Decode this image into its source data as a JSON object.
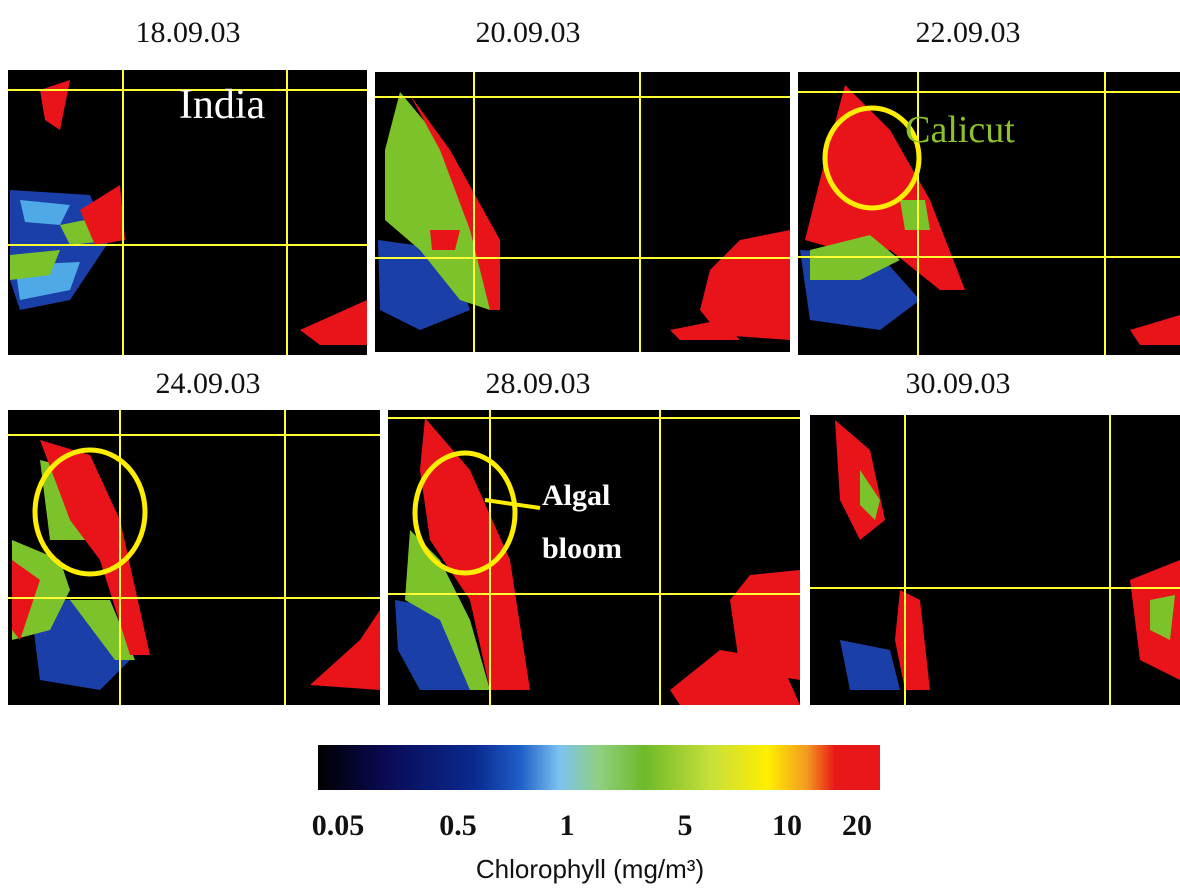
{
  "panels": [
    {
      "date": "18.09.03",
      "label": "India"
    },
    {
      "date": "20.09.03"
    },
    {
      "date": "22.09.03",
      "label": "Calicut"
    },
    {
      "date": "24.09.03"
    },
    {
      "date": "28.09.03",
      "label": [
        "Algal",
        "bloom"
      ]
    },
    {
      "date": "30.09.03"
    }
  ],
  "colorbar": {
    "ticks": [
      "0.05",
      "0.5",
      "1",
      "5",
      "10",
      "20"
    ],
    "title": "Chlorophyll (mg/m³)"
  }
}
